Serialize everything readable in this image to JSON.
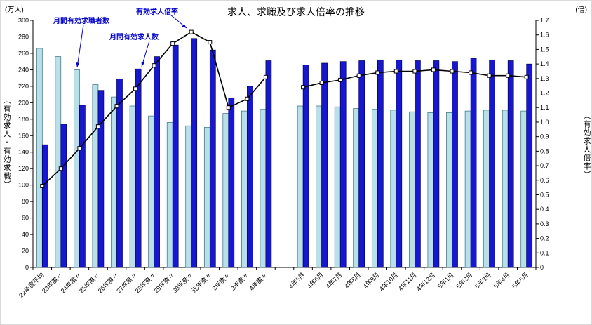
{
  "chart_data": {
    "type": "bar+line",
    "title": "求人、求職及び求人倍率の推移",
    "left_axis": {
      "unit": "(万人)",
      "title": "（有効求人・有効求職）",
      "min": 0,
      "max": 300,
      "step": 20
    },
    "right_axis": {
      "unit": "(倍)",
      "title": "（有効求人倍率）",
      "min": 0,
      "max": 1.7,
      "step": 0.1
    },
    "series_labels": {
      "seekers": "月間有効求職者数",
      "openings": "月間有効求人数",
      "ratio": "有効求人倍率"
    },
    "colors": {
      "seekers": "#b9dfe8",
      "seekers_border": "#2e6e84",
      "openings": "#1717cf",
      "openings_border": "#00004d",
      "ratio_line": "#000000",
      "marker_fill": "#ffffff",
      "annotation": "#0000cc"
    },
    "legend_position": "annotations-with-arrows",
    "grid": false,
    "groups": [
      {
        "name": "annual",
        "categories": [
          "22年度平均",
          "23年度〃",
          "24年度〃",
          "25年度〃",
          "26年度〃",
          "27年度〃",
          "28年度〃",
          "29年度〃",
          "30年度〃",
          "元年度〃",
          "2年度〃",
          "3年度〃",
          "4年度〃"
        ],
        "seekers": [
          266,
          256,
          240,
          222,
          207,
          196,
          184,
          176,
          172,
          170,
          187,
          190,
          192
        ],
        "openings": [
          149,
          174,
          197,
          215,
          229,
          241,
          256,
          270,
          278,
          264,
          206,
          220,
          251
        ],
        "ratio": [
          0.56,
          0.68,
          0.82,
          0.97,
          1.11,
          1.23,
          1.39,
          1.54,
          1.62,
          1.55,
          1.1,
          1.16,
          1.31
        ]
      },
      {
        "name": "monthly",
        "categories": [
          "4年5月",
          "4年6月",
          "4年7月",
          "4年8月",
          "4年9月",
          "4年10月",
          "4年11月",
          "4年12月",
          "5年1月",
          "5年2月",
          "5年3月",
          "5年4月",
          "5年5月"
        ],
        "seekers": [
          196,
          196,
          195,
          193,
          192,
          191,
          189,
          188,
          188,
          190,
          191,
          191,
          190
        ],
        "openings": [
          246,
          248,
          250,
          251,
          252,
          252,
          251,
          251,
          250,
          254,
          252,
          251,
          247
        ],
        "ratio": [
          1.24,
          1.27,
          1.29,
          1.32,
          1.34,
          1.35,
          1.35,
          1.36,
          1.35,
          1.34,
          1.32,
          1.32,
          1.31
        ]
      }
    ]
  }
}
